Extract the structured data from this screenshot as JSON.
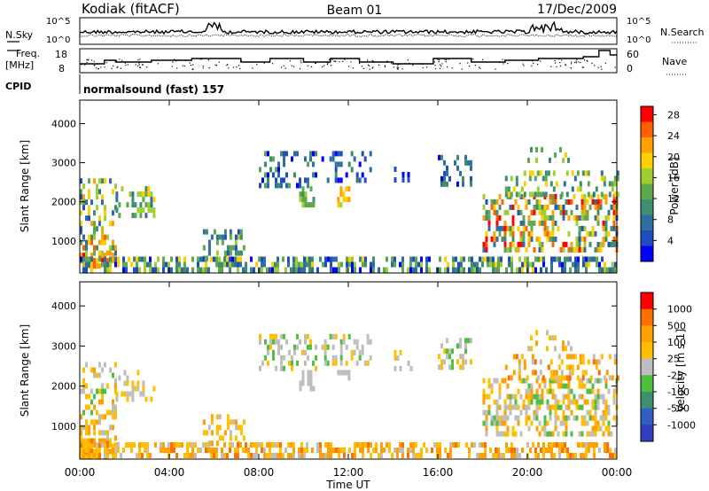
{
  "header": {
    "station": "Kodiak (fitACF)",
    "beam": "Beam 01",
    "date": "17/Dec/2009"
  },
  "summary_panels": {
    "nsky_label": "N.Sky",
    "nsearch_label": "N.Search",
    "noise_ticks": [
      "10^5",
      "10^0"
    ],
    "freq_label": "Freq.",
    "freq_unit": "[MHz]",
    "freq_ticks": [
      "18",
      "8"
    ],
    "nave_label": "Nave",
    "nave_ticks": [
      "60",
      "0"
    ],
    "cpid_label": "CPID",
    "cpid_text": "normalsound (fast) 157"
  },
  "chart_data": [
    {
      "type": "heatmap",
      "name": "power",
      "ylabel": "Slant Range [km]",
      "y_ticks": [
        "1000",
        "2000",
        "3000",
        "4000"
      ],
      "y_tick_values": [
        1000,
        2000,
        3000,
        4000
      ],
      "ylim": [
        180,
        4600
      ],
      "colorbar": {
        "label": "Power [dB]",
        "tick_labels": [
          "4",
          "8",
          "12",
          "16",
          "20",
          "24",
          "28"
        ],
        "colors": [
          "#0000ff",
          "#1f4fbf",
          "#2f6f9f",
          "#3f8f6f",
          "#5fa84f",
          "#9fcf2f",
          "#ffcf00",
          "#ff9f00",
          "#ff5f00",
          "#ff0000"
        ]
      }
    },
    {
      "type": "heatmap",
      "name": "velocity",
      "ylabel": "Slant Range [km]",
      "y_ticks": [
        "1000",
        "2000",
        "3000",
        "4000"
      ],
      "y_tick_values": [
        1000,
        2000,
        3000,
        4000
      ],
      "ylim": [
        180,
        4600
      ],
      "colorbar": {
        "label": "Velocity [m s-1]",
        "tick_labels": [
          "1000",
          "500",
          "100",
          "25",
          "-25",
          "-100",
          "-500",
          "-1000"
        ],
        "colors": [
          "#2f3fbf",
          "#2f5fbf",
          "#3f8f6f",
          "#4fbf3f",
          "#bebebe",
          "#ffbf00",
          "#ff9f00",
          "#ff6f00",
          "#ff0000"
        ]
      }
    }
  ],
  "x_axis": {
    "label": "Time UT",
    "ticks": [
      "00:00",
      "04:00",
      "08:00",
      "12:00",
      "16:00",
      "20:00",
      "00:00"
    ],
    "tick_hours": [
      0,
      4,
      8,
      12,
      16,
      20,
      24
    ],
    "xlim_hours": [
      0,
      24
    ]
  }
}
